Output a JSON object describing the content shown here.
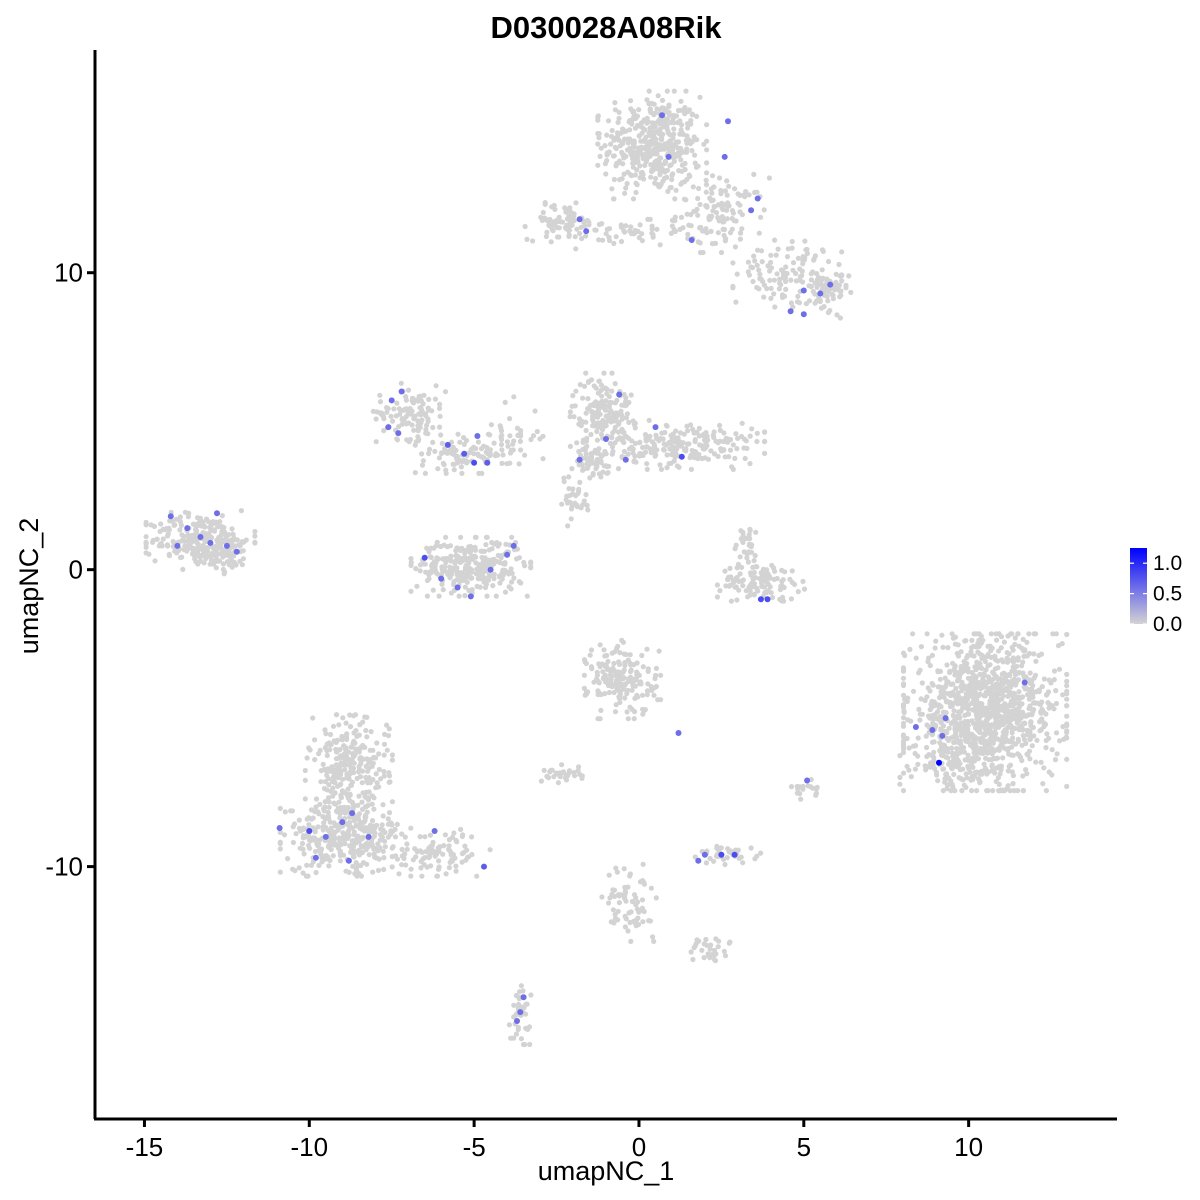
{
  "chart_data": {
    "type": "scatter",
    "title": "D030028A08Rik",
    "xlabel": "umapNC_1",
    "ylabel": "umapNC_2",
    "xlim": [
      -16.5,
      14.5
    ],
    "ylim": [
      -18.5,
      17.5
    ],
    "xticks": [
      -15,
      -10,
      -5,
      0,
      5,
      10
    ],
    "xtick_labels": [
      "-15",
      "-10",
      "-5",
      "0",
      "5",
      "10"
    ],
    "yticks": [
      -10,
      0,
      10
    ],
    "ytick_labels": [
      "-10",
      "0",
      "10"
    ],
    "grid": false,
    "legend": {
      "position": "right",
      "labels": [
        "1.0",
        "0.5",
        "0.0"
      ],
      "values": [
        1.0,
        0.5,
        0.0
      ],
      "low_color": "#d3d3d3",
      "high_color": "#0000ff",
      "range": [
        0,
        1.25
      ]
    },
    "background_color": "#d3d3d3",
    "clusters": [
      {
        "cx": 0.4,
        "cy": 14.3,
        "sx": 1.0,
        "sy": 1.1,
        "n": 420
      },
      {
        "cx": 2.5,
        "cy": 12.0,
        "sx": 0.9,
        "sy": 0.8,
        "n": 120
      },
      {
        "cx": 4.5,
        "cy": 10.0,
        "sx": 1.0,
        "sy": 0.7,
        "n": 110
      },
      {
        "cx": 5.6,
        "cy": 9.3,
        "sx": 0.5,
        "sy": 0.5,
        "n": 60
      },
      {
        "cx": -2.3,
        "cy": 11.7,
        "sx": 0.7,
        "sy": 0.4,
        "n": 70
      },
      {
        "cx": -0.5,
        "cy": 11.3,
        "sx": 1.2,
        "sy": 0.3,
        "n": 50
      },
      {
        "cx": -13.3,
        "cy": 1.0,
        "sx": 1.0,
        "sy": 0.6,
        "n": 260
      },
      {
        "cx": -12.4,
        "cy": 0.5,
        "sx": 0.4,
        "sy": 0.4,
        "n": 40
      },
      {
        "cx": -6.9,
        "cy": 5.3,
        "sx": 0.7,
        "sy": 0.6,
        "n": 110
      },
      {
        "cx": -5.3,
        "cy": 3.9,
        "sx": 0.9,
        "sy": 0.4,
        "n": 90
      },
      {
        "cx": -3.9,
        "cy": 4.5,
        "sx": 0.6,
        "sy": 0.8,
        "n": 40
      },
      {
        "cx": -5.1,
        "cy": 0.1,
        "sx": 1.1,
        "sy": 0.6,
        "n": 300
      },
      {
        "cx": -1.1,
        "cy": 5.3,
        "sx": 0.6,
        "sy": 0.8,
        "n": 170
      },
      {
        "cx": 1.5,
        "cy": 4.2,
        "sx": 1.4,
        "sy": 0.5,
        "n": 200
      },
      {
        "cx": -1.5,
        "cy": 3.6,
        "sx": 0.6,
        "sy": 0.4,
        "n": 60
      },
      {
        "cx": -2.0,
        "cy": 2.3,
        "sx": 0.4,
        "sy": 0.5,
        "n": 30
      },
      {
        "cx": 3.7,
        "cy": -0.4,
        "sx": 0.8,
        "sy": 0.4,
        "n": 110
      },
      {
        "cx": 3.3,
        "cy": 0.8,
        "sx": 0.3,
        "sy": 0.5,
        "n": 30
      },
      {
        "cx": 10.5,
        "cy": -4.8,
        "sx": 1.5,
        "sy": 1.6,
        "n": 1100
      },
      {
        "cx": 9.4,
        "cy": -6.4,
        "sx": 0.9,
        "sy": 0.5,
        "n": 90
      },
      {
        "cx": -0.5,
        "cy": -3.7,
        "sx": 0.7,
        "sy": 0.8,
        "n": 180
      },
      {
        "cx": -2.3,
        "cy": -6.9,
        "sx": 0.4,
        "sy": 0.2,
        "n": 30
      },
      {
        "cx": 2.7,
        "cy": -9.6,
        "sx": 0.6,
        "sy": 0.2,
        "n": 40
      },
      {
        "cx": -8.8,
        "cy": -6.7,
        "sx": 0.8,
        "sy": 1.1,
        "n": 260
      },
      {
        "cx": -8.9,
        "cy": -9.0,
        "sx": 1.2,
        "sy": 0.8,
        "n": 340
      },
      {
        "cx": -6.0,
        "cy": -9.5,
        "sx": 0.9,
        "sy": 0.5,
        "n": 90
      },
      {
        "cx": -3.6,
        "cy": -15.0,
        "sx": 0.2,
        "sy": 0.6,
        "n": 40
      },
      {
        "cx": -0.3,
        "cy": -11.2,
        "sx": 0.5,
        "sy": 0.8,
        "n": 70
      },
      {
        "cx": 2.1,
        "cy": -12.8,
        "sx": 0.4,
        "sy": 0.3,
        "n": 30
      },
      {
        "cx": 5.0,
        "cy": -7.4,
        "sx": 0.3,
        "sy": 0.2,
        "n": 18
      }
    ],
    "expressing_cells": [
      [
        0.7,
        15.3,
        0.6
      ],
      [
        0.9,
        13.9,
        0.6
      ],
      [
        2.6,
        13.9,
        0.6
      ],
      [
        2.7,
        15.1,
        0.6
      ],
      [
        3.4,
        12.1,
        0.6
      ],
      [
        3.6,
        12.5,
        0.6
      ],
      [
        1.6,
        11.1,
        0.6
      ],
      [
        -1.6,
        11.4,
        0.6
      ],
      [
        -1.8,
        11.8,
        0.6
      ],
      [
        5.0,
        9.4,
        0.6
      ],
      [
        5.5,
        9.3,
        0.6
      ],
      [
        5.8,
        9.6,
        0.6
      ],
      [
        4.6,
        8.7,
        0.6
      ],
      [
        5.0,
        8.6,
        0.6
      ],
      [
        -14.2,
        1.8,
        0.6
      ],
      [
        -13.7,
        1.4,
        0.6
      ],
      [
        -13.3,
        1.1,
        0.6
      ],
      [
        -12.8,
        1.9,
        0.6
      ],
      [
        -12.5,
        0.8,
        0.6
      ],
      [
        -14.0,
        0.8,
        0.6
      ],
      [
        -13.0,
        0.9,
        0.6
      ],
      [
        -12.2,
        0.6,
        0.6
      ],
      [
        -7.2,
        6.0,
        0.6
      ],
      [
        -7.5,
        5.7,
        0.6
      ],
      [
        -7.6,
        4.8,
        0.6
      ],
      [
        -7.3,
        4.6,
        0.6
      ],
      [
        -5.8,
        4.2,
        0.7
      ],
      [
        -5.3,
        3.9,
        0.7
      ],
      [
        -5.0,
        3.6,
        0.8
      ],
      [
        -4.6,
        3.6,
        0.7
      ],
      [
        -4.9,
        4.5,
        0.6
      ],
      [
        -6.5,
        0.4,
        0.8
      ],
      [
        -6.0,
        -0.3,
        0.6
      ],
      [
        -5.5,
        -0.6,
        0.6
      ],
      [
        -5.1,
        -0.9,
        0.6
      ],
      [
        -4.0,
        0.5,
        0.6
      ],
      [
        -3.8,
        0.8,
        0.6
      ],
      [
        -4.5,
        0.0,
        0.6
      ],
      [
        -0.6,
        5.9,
        0.6
      ],
      [
        -1.0,
        4.4,
        0.6
      ],
      [
        -1.8,
        3.7,
        0.6
      ],
      [
        -0.4,
        3.7,
        0.6
      ],
      [
        0.5,
        4.8,
        0.6
      ],
      [
        1.3,
        3.8,
        0.8
      ],
      [
        3.7,
        -1.0,
        0.8
      ],
      [
        3.9,
        -1.0,
        0.8
      ],
      [
        11.7,
        -3.8,
        0.6
      ],
      [
        9.3,
        -5.0,
        0.6
      ],
      [
        8.4,
        -5.3,
        0.6
      ],
      [
        8.9,
        -5.4,
        0.6
      ],
      [
        9.2,
        -5.6,
        0.6
      ],
      [
        9.1,
        -6.5,
        1.25
      ],
      [
        1.2,
        -5.5,
        0.6
      ],
      [
        -9.0,
        -8.5,
        0.6
      ],
      [
        -8.7,
        -8.2,
        0.6
      ],
      [
        -9.5,
        -9.0,
        0.6
      ],
      [
        -8.2,
        -9.0,
        0.6
      ],
      [
        -9.8,
        -9.7,
        0.6
      ],
      [
        -10.0,
        -8.8,
        0.8
      ],
      [
        -10.9,
        -8.7,
        0.6
      ],
      [
        -8.8,
        -9.8,
        0.6
      ],
      [
        -6.2,
        -8.8,
        0.6
      ],
      [
        -4.7,
        -10.0,
        0.7
      ],
      [
        2.0,
        -9.6,
        0.6
      ],
      [
        2.9,
        -9.6,
        0.8
      ],
      [
        2.5,
        -9.6,
        0.8
      ],
      [
        1.8,
        -9.8,
        0.6
      ],
      [
        -3.5,
        -14.4,
        0.6
      ],
      [
        -3.7,
        -15.2,
        0.6
      ],
      [
        -3.6,
        -14.9,
        0.6
      ],
      [
        5.1,
        -7.1,
        0.6
      ]
    ]
  }
}
